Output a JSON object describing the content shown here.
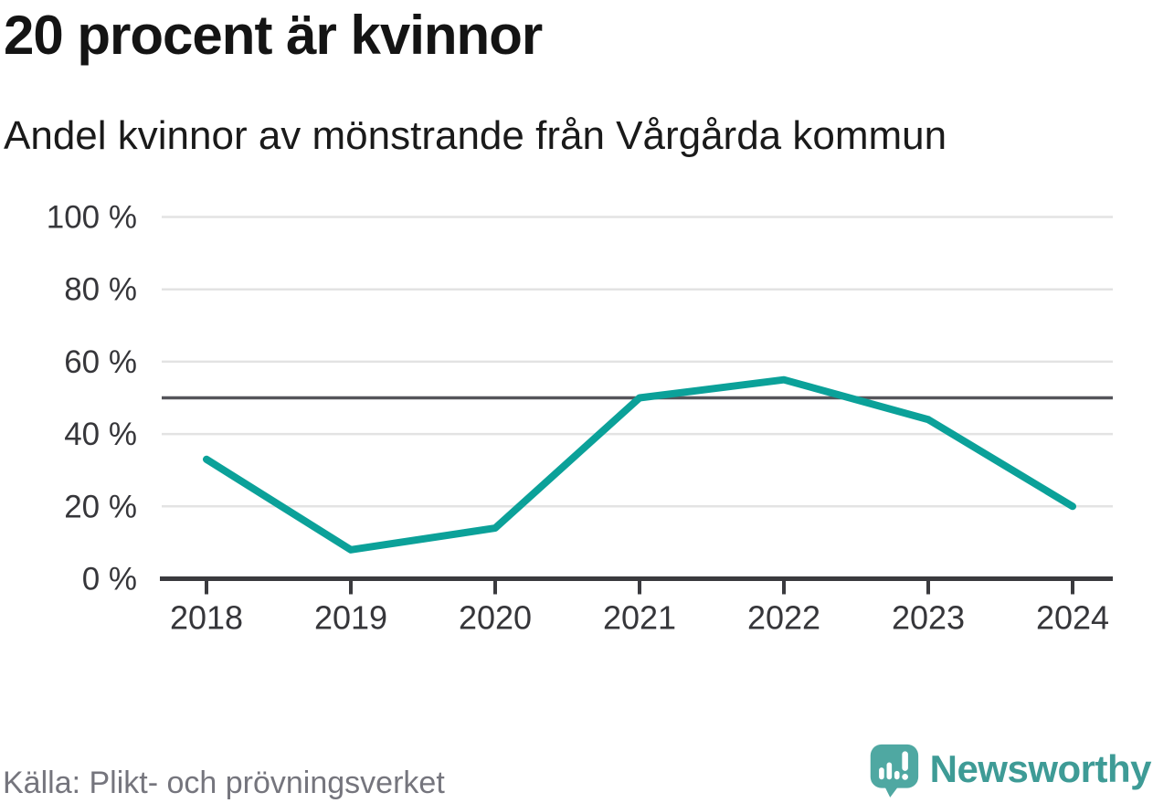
{
  "header": {
    "title": "20 procent är kvinnor",
    "subtitle": "Andel kvinnor av mönstrande från Vårgårda kommun"
  },
  "footer": {
    "source": "Källa: Plikt- och prövningsverket",
    "brand": "Newsworthy"
  },
  "icons": {
    "logo": "newsworthy-speech-bubble-with-bar-chart-and-exclamation"
  },
  "chart_data": {
    "type": "line",
    "title": "20 procent är kvinnor",
    "subtitle": "Andel kvinnor av mönstrande från Vårgårda kommun",
    "source": "Källa: Plikt- och prövningsverket",
    "categories": [
      "2018",
      "2019",
      "2020",
      "2021",
      "2022",
      "2023",
      "2024"
    ],
    "series": [
      {
        "name": "Andel kvinnor av mönstrande",
        "values": [
          33,
          8,
          14,
          50,
          55,
          44,
          20
        ]
      }
    ],
    "xlabel": "",
    "ylabel": "",
    "ylim": [
      0,
      100
    ],
    "yticks": [
      0,
      20,
      40,
      60,
      80,
      100
    ],
    "ytick_labels": [
      "0 %",
      "20 %",
      "40 %",
      "60 %",
      "80 %",
      "100 %"
    ],
    "reference_line": 50,
    "grid": true,
    "legend_position": "none",
    "colors": {
      "line": "#0ba199",
      "reference": "#55555a",
      "grid": "#e3e3e3",
      "axis": "#3a3a3e",
      "tick_label": "#36363a",
      "logo": "#4fa8a2",
      "wordmark": "#3e9b96"
    }
  }
}
